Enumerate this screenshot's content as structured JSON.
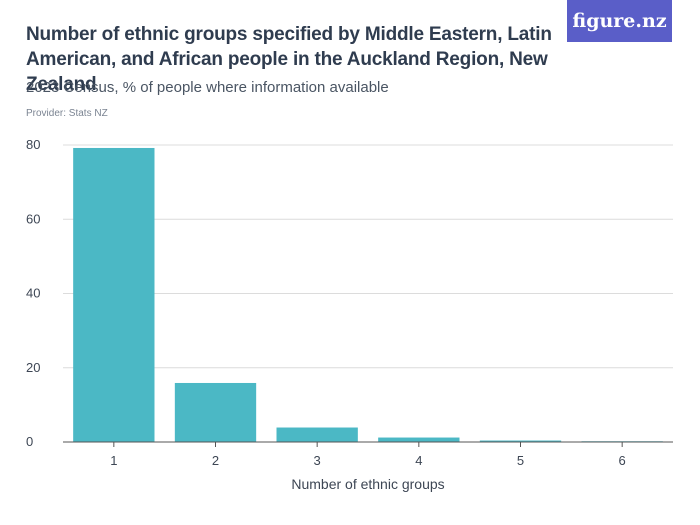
{
  "header": {
    "title": "Number of ethnic groups specified by Middle Eastern, Latin American, and African people in the Auckland Region, New Zealand",
    "subtitle": "2023 Census, % of people where information available",
    "provider": "Provider: Stats NZ",
    "logo_text": "figure.nz"
  },
  "colors": {
    "bar": "#4bb8c5",
    "grid": "#dcdcdc",
    "axis": "#555555",
    "logo_bg": "#5a5ec8"
  },
  "chart_data": {
    "type": "bar",
    "title": "Number of ethnic groups specified by Middle Eastern, Latin American, and African people in the Auckland Region, New Zealand",
    "subtitle": "2023 Census, % of people where information available",
    "xlabel": "Number of ethnic groups",
    "ylabel": "",
    "categories": [
      "1",
      "2",
      "3",
      "4",
      "5",
      "6"
    ],
    "values": [
      79.2,
      15.9,
      3.9,
      1.2,
      0.4,
      0.2
    ],
    "ylim": [
      0,
      80
    ],
    "yticks": [
      0,
      20,
      40,
      60,
      80
    ],
    "grid": true,
    "legend": "none"
  }
}
